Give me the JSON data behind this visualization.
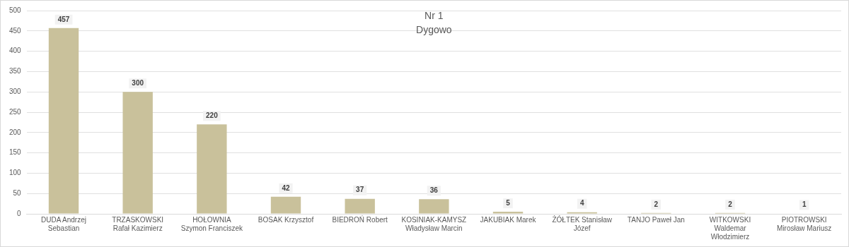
{
  "chart_data": {
    "type": "bar",
    "title": "Nr 1",
    "subtitle": "Dygowo",
    "categories": [
      "DUDA Andrzej Sebastian",
      "TRZASKOWSKI Rafał Kazimierz",
      "HOŁOWNIA Szymon Franciszek",
      "BOSAK Krzysztof",
      "BIEDROŃ Robert",
      "KOSINIAK-KAMYSZ Władysław Marcin",
      "JAKUBIAK Marek",
      "ŻÓŁTEK Stanisław Józef",
      "TANJO Paweł Jan",
      "WITKOWSKI Waldemar Włodzimierz",
      "PIOTROWSKI Mirosław Mariusz"
    ],
    "values": [
      457,
      300,
      220,
      42,
      37,
      36,
      5,
      4,
      2,
      2,
      1
    ],
    "color": "#c9c19b",
    "ylim": [
      0,
      500
    ],
    "yticks": [
      0,
      50,
      100,
      150,
      200,
      250,
      300,
      350,
      400,
      450,
      500
    ],
    "grid": "y",
    "data_labels": true,
    "legend": false
  }
}
